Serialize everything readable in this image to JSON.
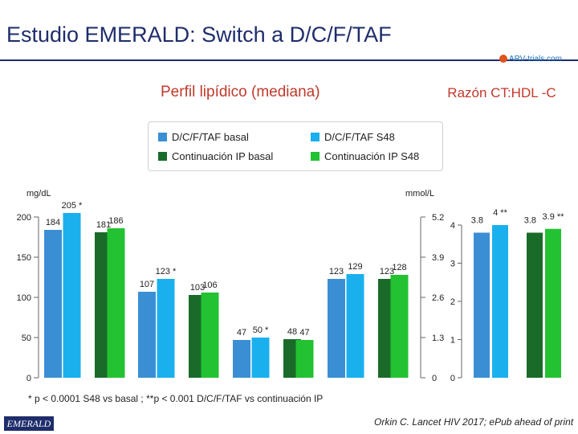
{
  "slide": {
    "title": "Estudio EMERALD: Switch a D/C/F/TAF",
    "logo_text": "ARV-trials.com",
    "study_logo": "EMERALD",
    "footnote": "* p < 0.0001 S48 vs basal ; **p < 0.001 D/C/F/TAF vs continuación IP",
    "citation": "Orkin C. Lancet HIV 2017; ePub ahead of print"
  },
  "colors": {
    "dcf_basal": "#3a8fd4",
    "dcf_s48": "#1ab0ee",
    "ip_basal": "#1a6b2a",
    "ip_s48": "#22c233",
    "title": "#1f2d6b",
    "subtitle": "#c0392b"
  },
  "legend": [
    {
      "label": "D/C/F/TAF basal",
      "color_key": "dcf_basal"
    },
    {
      "label": "D/C/F/TAF S48",
      "color_key": "dcf_s48"
    },
    {
      "label": "Continuación IP basal",
      "color_key": "ip_basal"
    },
    {
      "label": "Continuación IP S48",
      "color_key": "ip_s48"
    }
  ],
  "chart_data": [
    {
      "type": "bar",
      "title": "Perfil lipídico (mediana)",
      "ylabel": "mg/dL",
      "ylabel_right": "mmol/L",
      "ylim": [
        0,
        200
      ],
      "yticks": [
        0,
        50,
        100,
        150,
        200
      ],
      "right_ticks": [
        "0",
        "1.3",
        "2.6",
        "3.9",
        "5.2"
      ],
      "groups": [
        {
          "values": [
            184,
            205,
            181,
            186
          ],
          "labels": [
            "184",
            "205 *",
            "181",
            "186"
          ]
        },
        {
          "values": [
            107,
            123,
            103,
            106
          ],
          "labels": [
            "107",
            "123 *",
            "103",
            "106"
          ]
        },
        {
          "values": [
            47,
            50,
            48,
            47
          ],
          "labels": [
            "47",
            "50 *",
            "48",
            "47"
          ]
        },
        {
          "values": [
            123,
            129,
            123,
            128
          ],
          "labels": [
            "123",
            "129",
            "123",
            "128"
          ]
        }
      ],
      "series": [
        "D/C/F/TAF basal",
        "D/C/F/TAF S48",
        "Continuación IP basal",
        "Continuación IP S48"
      ]
    },
    {
      "type": "bar",
      "title": "Razón CT:HDL -C",
      "ylim": [
        0,
        4
      ],
      "yticks": [
        0,
        1,
        2,
        3,
        4
      ],
      "groups": [
        {
          "values": [
            3.8,
            4
          ],
          "labels": [
            "3.8",
            "4 **"
          ]
        },
        {
          "values": [
            3.8,
            3.9
          ],
          "labels": [
            "3.8",
            "3.9 **"
          ]
        }
      ],
      "series_keys": [
        [
          "dcf_basal",
          "dcf_s48"
        ],
        [
          "ip_basal",
          "ip_s48"
        ]
      ]
    }
  ]
}
